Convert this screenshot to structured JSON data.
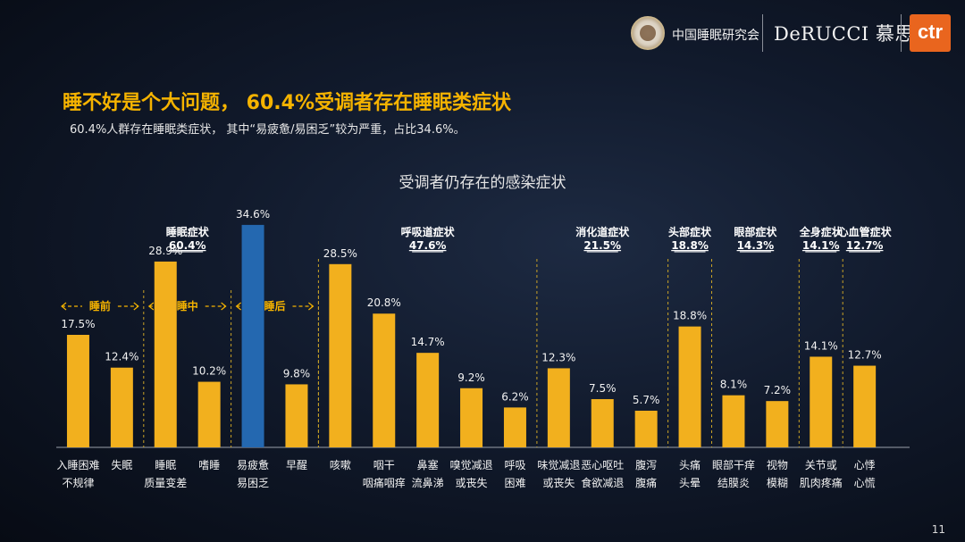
{
  "header": {
    "org_name": "中国睡眠研究会",
    "brand": "DeRUCCI 慕思",
    "ctr_logo": "ctr"
  },
  "slide": {
    "title": "睡不好是个大问题， 60.4%受调者存在睡眠类症状",
    "subtitle": "60.4%人群存在睡眠类症状， 其中“易疲惫/易困乏”较为严重，占比34.6%。",
    "page_number": "11"
  },
  "colors": {
    "bar": "#f2b01e",
    "highlight_bar": "#2468b0",
    "accent": "#f5b300",
    "divider": "#c9a227"
  },
  "chart_data": {
    "type": "bar",
    "title": "受调者仍存在的感染症状",
    "ylim": [
      0,
      40
    ],
    "unit": "%",
    "categories": [
      [
        "入睡困难",
        "不规律"
      ],
      [
        "失眠"
      ],
      [
        "睡眠",
        "质量变差"
      ],
      [
        "嗜睡"
      ],
      [
        "易疲惫",
        "易困乏"
      ],
      [
        "早醒"
      ],
      [
        "咳嗽"
      ],
      [
        "咽干",
        "咽痛咽痒"
      ],
      [
        "鼻塞",
        "流鼻涕"
      ],
      [
        "嗅觉减退",
        "或丧失"
      ],
      [
        "呼吸",
        "困难"
      ],
      [
        "味觉减退",
        "或丧失"
      ],
      [
        "恶心呕吐",
        "食欲减退"
      ],
      [
        "腹泻",
        "腹痛"
      ],
      [
        "头痛",
        "头晕"
      ],
      [
        "眼部干痒",
        "结膜炎"
      ],
      [
        "视物",
        "模糊"
      ],
      [
        "关节或",
        "肌肉疼痛"
      ],
      [
        "心悸",
        "心慌"
      ]
    ],
    "values": [
      17.5,
      12.4,
      28.9,
      10.2,
      34.6,
      9.8,
      28.5,
      20.8,
      14.7,
      9.2,
      6.2,
      12.3,
      7.5,
      5.7,
      18.8,
      8.1,
      7.2,
      14.1,
      12.7
    ],
    "value_labels": [
      "17.5%",
      "12.4%",
      "28.9%",
      "10.2%",
      "34.6%",
      "9.8%",
      "28.5%",
      "20.8%",
      "14.7%",
      "9.2%",
      "6.2%",
      "12.3%",
      "7.5%",
      "5.7%",
      "18.8%",
      "8.1%",
      "7.2%",
      "14.1%",
      "12.7%"
    ],
    "highlight_index": 4,
    "groups": [
      {
        "name": "睡眠症状",
        "pct": "60.4%",
        "start": 0,
        "end": 5
      },
      {
        "name": "呼吸道症状",
        "pct": "47.6%",
        "start": 6,
        "end": 10
      },
      {
        "name": "消化道症状",
        "pct": "21.5%",
        "start": 11,
        "end": 13
      },
      {
        "name": "头部症状",
        "pct": "18.8%",
        "start": 14,
        "end": 14
      },
      {
        "name": "眼部症状",
        "pct": "14.3%",
        "start": 15,
        "end": 16
      },
      {
        "name": "全身症状",
        "pct": "14.1%",
        "start": 17,
        "end": 17
      },
      {
        "name": "心血管症状",
        "pct": "12.7%",
        "start": 18,
        "end": 18
      }
    ],
    "phases": [
      {
        "name": "睡前",
        "start": 0,
        "end": 1
      },
      {
        "name": "睡中",
        "start": 2,
        "end": 3
      },
      {
        "name": "睡后",
        "start": 4,
        "end": 5
      }
    ],
    "grid": false,
    "legend": "none"
  }
}
